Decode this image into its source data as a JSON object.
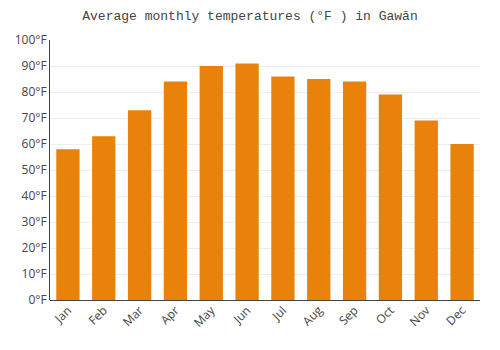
{
  "chart_data": {
    "type": "bar",
    "title": "Average monthly temperatures (°F ) in Gawān",
    "categories": [
      "Jan",
      "Feb",
      "Mar",
      "Apr",
      "May",
      "Jun",
      "Jul",
      "Aug",
      "Sep",
      "Oct",
      "Nov",
      "Dec"
    ],
    "values": [
      58,
      63,
      73,
      84,
      90,
      91,
      86,
      85,
      84,
      79,
      69,
      60
    ],
    "color": "#E8820A",
    "ylim": [
      0,
      100
    ],
    "yticks": [
      {
        "value": 0,
        "label": "0°F"
      },
      {
        "value": 10,
        "label": "10°F"
      },
      {
        "value": 20,
        "label": "20°F"
      },
      {
        "value": 30,
        "label": "30°F"
      },
      {
        "value": 40,
        "label": "40°F"
      },
      {
        "value": 50,
        "label": "50°F"
      },
      {
        "value": 60,
        "label": "60°F"
      },
      {
        "value": 70,
        "label": "70°F"
      },
      {
        "value": 80,
        "label": "80°F"
      },
      {
        "value": 90,
        "label": "90°F"
      },
      {
        "value": 100,
        "label": "100°F"
      }
    ],
    "grid": true
  }
}
